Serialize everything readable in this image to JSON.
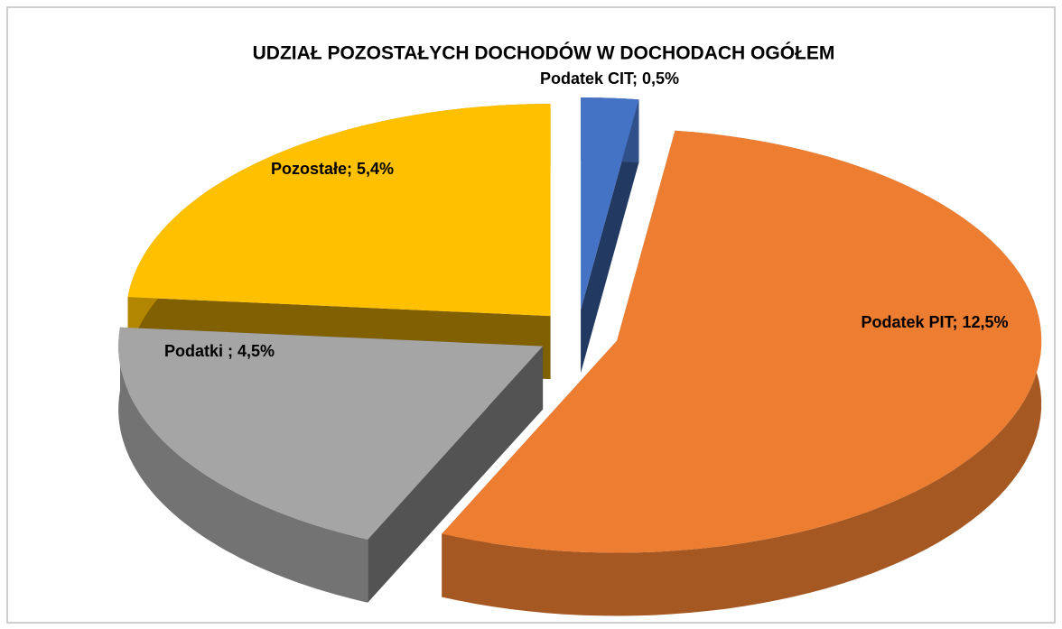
{
  "chart_data": {
    "type": "pie3d",
    "title": "UDZIAŁ POZOSTAŁYCH DOCHODÓW W DOCHODACH OGÓŁEM",
    "categories": [
      "Podatek CIT",
      "Podatek PIT",
      "Podatki",
      "Pozostałe"
    ],
    "values": [
      0.5,
      12.5,
      4.5,
      5.4
    ],
    "value_labels": [
      "Podatek CIT; 0,5%",
      "Podatek PIT; 12,5%",
      "Podatki ; 4,5%",
      "Pozostałe; 5,4%"
    ],
    "colors": [
      "#4472c4",
      "#ed7d31",
      "#a5a5a5",
      "#ffc000"
    ]
  }
}
